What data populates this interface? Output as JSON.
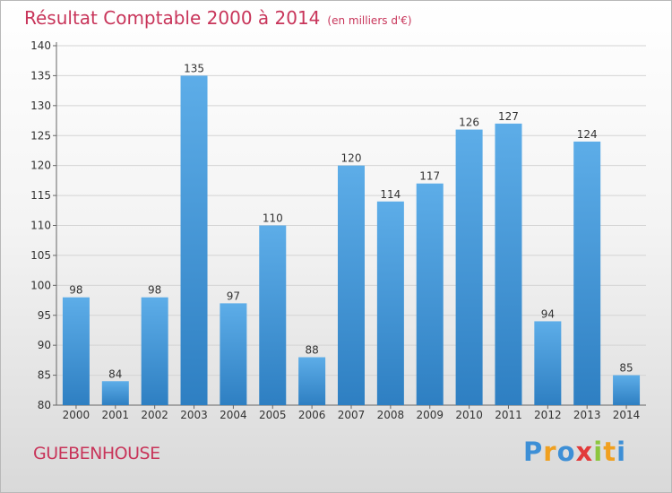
{
  "chart_data": {
    "type": "bar",
    "title": "Résultat Comptable 2000 à 2014",
    "unit": "(en milliers d'€)",
    "categories": [
      "2000",
      "2001",
      "2002",
      "2003",
      "2004",
      "2005",
      "2006",
      "2007",
      "2008",
      "2009",
      "2010",
      "2011",
      "2012",
      "2013",
      "2014"
    ],
    "values": [
      98,
      84,
      98,
      135,
      97,
      110,
      88,
      120,
      114,
      117,
      126,
      127,
      94,
      124,
      85
    ],
    "yticks": [
      80,
      85,
      90,
      95,
      100,
      105,
      110,
      115,
      120,
      125,
      130,
      135,
      140
    ],
    "ylim": [
      80,
      140
    ],
    "grid": true,
    "bar_color": "#4a9ad8"
  },
  "footer": {
    "commune": "GUEBENHOUSE",
    "logo": {
      "letters": [
        "P",
        "r",
        "o",
        "x",
        "i",
        "t",
        "i"
      ],
      "colors": [
        "#3d8fd6",
        "#f0a020",
        "#3d8fd6",
        "#e23a3a",
        "#8cc63f",
        "#f0a020",
        "#3d8fd6"
      ]
    }
  }
}
